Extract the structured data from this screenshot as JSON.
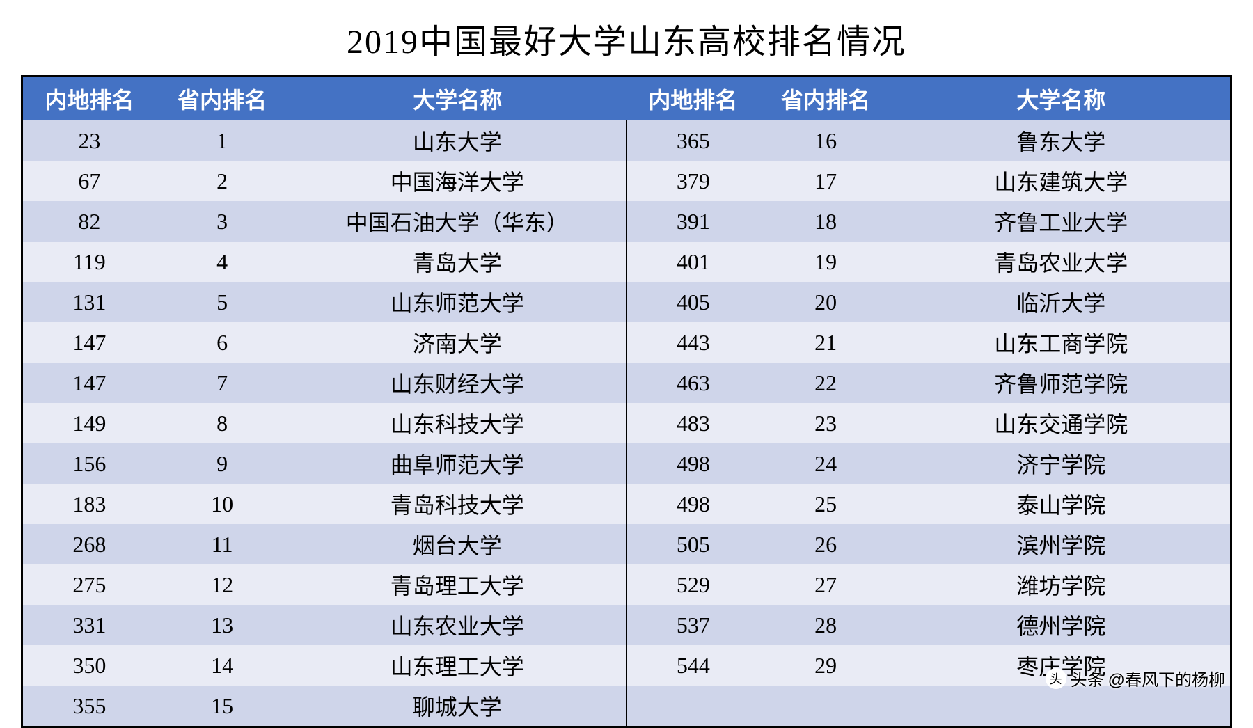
{
  "title": "2019中国最好大学山东高校排名情况",
  "table": {
    "header_bg": "#4472c4",
    "header_fg": "#ffffff",
    "row_odd_bg": "#cfd5ea",
    "row_even_bg": "#e9ebf5",
    "border_color": "#000000",
    "columns_left": [
      "内地排名",
      "省内排名",
      "大学名称"
    ],
    "columns_right": [
      "内地排名",
      "省内排名",
      "大学名称"
    ],
    "rows": [
      {
        "l_nat": "23",
        "l_prov": "1",
        "l_name": "山东大学",
        "r_nat": "365",
        "r_prov": "16",
        "r_name": "鲁东大学"
      },
      {
        "l_nat": "67",
        "l_prov": "2",
        "l_name": "中国海洋大学",
        "r_nat": "379",
        "r_prov": "17",
        "r_name": "山东建筑大学"
      },
      {
        "l_nat": "82",
        "l_prov": "3",
        "l_name": "中国石油大学（华东）",
        "r_nat": "391",
        "r_prov": "18",
        "r_name": "齐鲁工业大学"
      },
      {
        "l_nat": "119",
        "l_prov": "4",
        "l_name": "青岛大学",
        "r_nat": "401",
        "r_prov": "19",
        "r_name": "青岛农业大学"
      },
      {
        "l_nat": "131",
        "l_prov": "5",
        "l_name": "山东师范大学",
        "r_nat": "405",
        "r_prov": "20",
        "r_name": "临沂大学"
      },
      {
        "l_nat": "147",
        "l_prov": "6",
        "l_name": "济南大学",
        "r_nat": "443",
        "r_prov": "21",
        "r_name": "山东工商学院"
      },
      {
        "l_nat": "147",
        "l_prov": "7",
        "l_name": "山东财经大学",
        "r_nat": "463",
        "r_prov": "22",
        "r_name": "齐鲁师范学院"
      },
      {
        "l_nat": "149",
        "l_prov": "8",
        "l_name": "山东科技大学",
        "r_nat": "483",
        "r_prov": "23",
        "r_name": "山东交通学院"
      },
      {
        "l_nat": "156",
        "l_prov": "9",
        "l_name": "曲阜师范大学",
        "r_nat": "498",
        "r_prov": "24",
        "r_name": "济宁学院"
      },
      {
        "l_nat": "183",
        "l_prov": "10",
        "l_name": "青岛科技大学",
        "r_nat": "498",
        "r_prov": "25",
        "r_name": "泰山学院"
      },
      {
        "l_nat": "268",
        "l_prov": "11",
        "l_name": "烟台大学",
        "r_nat": "505",
        "r_prov": "26",
        "r_name": "滨州学院"
      },
      {
        "l_nat": "275",
        "l_prov": "12",
        "l_name": "青岛理工大学",
        "r_nat": "529",
        "r_prov": "27",
        "r_name": "潍坊学院"
      },
      {
        "l_nat": "331",
        "l_prov": "13",
        "l_name": "山东农业大学",
        "r_nat": "537",
        "r_prov": "28",
        "r_name": "德州学院"
      },
      {
        "l_nat": "350",
        "l_prov": "14",
        "l_name": "山东理工大学",
        "r_nat": "544",
        "r_prov": "29",
        "r_name": "枣庄学院"
      },
      {
        "l_nat": "355",
        "l_prov": "15",
        "l_name": "聊城大学",
        "r_nat": "",
        "r_prov": "",
        "r_name": ""
      }
    ]
  },
  "watermark": {
    "prefix": "头条",
    "handle": "@春风下的杨柳"
  },
  "style": {
    "title_fontsize": 48,
    "cell_fontsize": 32,
    "font_family": "SimSun",
    "background_color": "#ffffff"
  }
}
